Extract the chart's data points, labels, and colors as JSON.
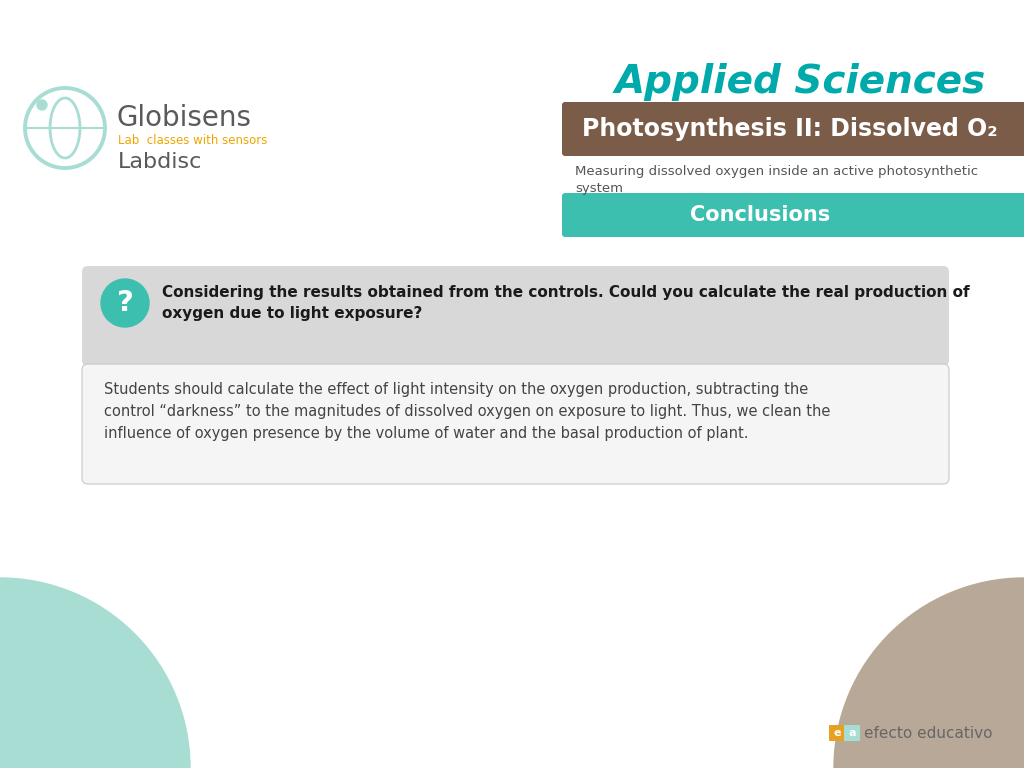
{
  "bg_color": "#ffffff",
  "title_applied": "Applied Sciences",
  "title_applied_color": "#00aaaa",
  "title_photo_bg": "#7a5c48",
  "title_photo_text": "Photosynthesis II: Dissolved O₂",
  "title_photo_color": "#ffffff",
  "subtitle_text": "Measuring dissolved oxygen inside an active photosynthetic\nsystem",
  "subtitle_color": "#555555",
  "conclusions_bg": "#3dbfb0",
  "conclusions_text": "Conclusions",
  "conclusions_text_color": "#ffffff",
  "question_bg": "#d8d8d8",
  "question_text_bold": "Considering the results obtained from the controls. Could you calculate the real production of\noxygen due to light exposure?",
  "question_text_color": "#1a1a1a",
  "answer_text": "Students should calculate the effect of light intensity on the oxygen production, subtracting the\ncontrol “darkness” to the magnitudes of dissolved oxygen on exposure to light. Thus, we clean the\ninfluence of oxygen presence by the volume of water and the basal production of plant.",
  "answer_text_color": "#444444",
  "globisens_color": "#5a5a5a",
  "lab_classes_color": "#f0a500",
  "labdisc_color": "#5a5a5a",
  "teal_circle_color": "#a8ddd4",
  "brown_circle_color": "#b8a898",
  "question_mark_bg": "#3dbfb0",
  "question_mark_color": "#ffffff",
  "efecto_color": "#666666"
}
